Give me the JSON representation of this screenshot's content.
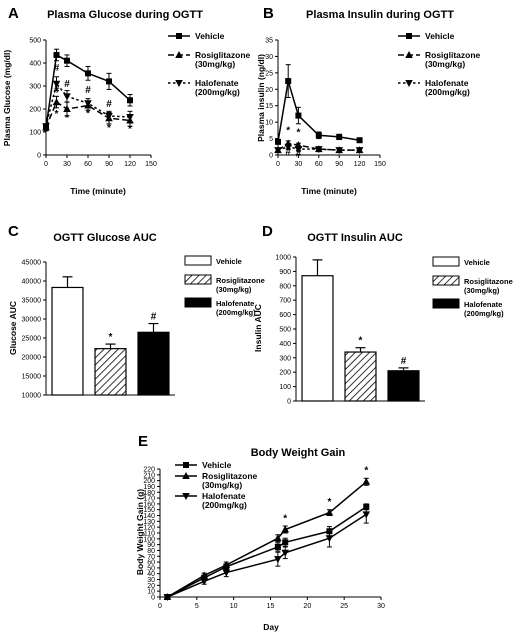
{
  "panels": [
    {
      "id": "A",
      "title": "Plasma Glucose during OGTT",
      "chart_data": {
        "type": "line",
        "title": "Plasma Glucose during OGTT",
        "xlabel": "Time (minute)",
        "ylabel": "Plasma Glucose (mg/dl)",
        "xlim": [
          0,
          150
        ],
        "ylim": [
          0,
          500
        ],
        "xticks": [
          0,
          30,
          60,
          90,
          120,
          150
        ],
        "yticks": [
          0,
          100,
          200,
          300,
          400,
          500
        ],
        "x": [
          0,
          15,
          30,
          60,
          90,
          120
        ],
        "series": [
          {
            "name": "Vehicle",
            "style": "solid",
            "marker": "square",
            "values": [
              120,
              435,
              410,
              355,
              320,
              238
            ],
            "errors": [
              15,
              25,
              25,
              30,
              35,
              25
            ]
          },
          {
            "name": "Rosiglitazone (30mg/kg)",
            "style": "dashed",
            "marker": "triangle",
            "values": [
              120,
              230,
              200,
              215,
              160,
              150
            ],
            "errors": [
              10,
              25,
              30,
              20,
              25,
              25
            ]
          },
          {
            "name": "Halofenate (200mg/kg)",
            "style": "dotted",
            "marker": "diamond",
            "values": [
              125,
              310,
              255,
              225,
              170,
              165
            ],
            "errors": [
              10,
              30,
              25,
              20,
              20,
              25
            ]
          }
        ],
        "annotations": [
          {
            "x": 15,
            "y": 365,
            "text": "#"
          },
          {
            "x": 15,
            "y": 270,
            "text": "#"
          },
          {
            "x": 15,
            "y": 165,
            "text": "*"
          },
          {
            "x": 30,
            "y": 295,
            "text": "#"
          },
          {
            "x": 30,
            "y": 148,
            "text": "*"
          },
          {
            "x": 60,
            "y": 270,
            "text": "#"
          },
          {
            "x": 60,
            "y": 168,
            "text": "*"
          },
          {
            "x": 90,
            "y": 208,
            "text": "#"
          },
          {
            "x": 90,
            "y": 105,
            "text": "*"
          },
          {
            "x": 120,
            "y": 100,
            "text": "*"
          }
        ]
      }
    },
    {
      "id": "B",
      "title": "Plasma Insulin during OGTT",
      "chart_data": {
        "type": "line",
        "title": "Plasma Insulin during OGTT",
        "xlabel": "Time (minute)",
        "ylabel": "Plasma insulin (ng/dl)",
        "xlim": [
          0,
          150
        ],
        "ylim": [
          0,
          35
        ],
        "xticks": [
          0,
          30,
          60,
          90,
          120,
          150
        ],
        "yticks": [
          0,
          5,
          10,
          15,
          20,
          25,
          30,
          35
        ],
        "x": [
          0,
          15,
          30,
          60,
          90,
          120
        ],
        "series": [
          {
            "name": "Vehicle",
            "style": "solid",
            "marker": "square",
            "values": [
              4,
              22.5,
              12,
              6,
              5.5,
              4.5
            ],
            "errors": [
              0.5,
              5,
              2.5,
              1,
              0.8,
              0.5
            ]
          },
          {
            "name": "Rosiglitazone (30mg/kg)",
            "style": "dashed",
            "marker": "triangle",
            "values": [
              1.5,
              3.5,
              3,
              1.8,
              1.5,
              1.5
            ],
            "errors": [
              0.3,
              0.8,
              0.6,
              0.3,
              0.3,
              0.3
            ]
          },
          {
            "name": "Halofenate (200mg/kg)",
            "style": "dotted",
            "marker": "diamond",
            "values": [
              1.5,
              2.5,
              1.8,
              1.8,
              1.5,
              1.5
            ],
            "errors": [
              0.3,
              0.6,
              0.4,
              0.3,
              0.3,
              0.3
            ]
          }
        ],
        "annotations": [
          {
            "x": 15,
            "y": 6.5,
            "text": "*"
          },
          {
            "x": 15,
            "y": 0.2,
            "text": "#"
          },
          {
            "x": 30,
            "y": 6.0,
            "text": "*"
          },
          {
            "x": 30,
            "y": -0.5,
            "text": "#"
          }
        ]
      }
    },
    {
      "id": "C",
      "title": "OGTT Glucose AUC",
      "chart_data": {
        "type": "bar",
        "title": "OGTT Glucose AUC",
        "ylabel": "Glucose AUC",
        "ylim": [
          10000,
          45000
        ],
        "yticks": [
          10000,
          15000,
          20000,
          25000,
          30000,
          35000,
          40000,
          45000
        ],
        "categories": [
          "Vehicle",
          "Rosiglitazone (30mg/kg)",
          "Halofenate (200mg/kg)"
        ],
        "values": [
          38300,
          22200,
          26500
        ],
        "errors": [
          2800,
          1200,
          2300
        ],
        "fills": [
          "white",
          "hatch",
          "black"
        ],
        "labels": [
          "",
          "*",
          "#"
        ]
      }
    },
    {
      "id": "D",
      "title": "OGTT Insulin AUC",
      "chart_data": {
        "type": "bar",
        "title": "OGTT Insulin AUC",
        "ylabel": "Insulin AUC",
        "ylim": [
          0,
          1000
        ],
        "yticks": [
          0,
          100,
          200,
          300,
          400,
          500,
          600,
          700,
          800,
          900,
          1000
        ],
        "categories": [
          "Vehicle",
          "Rosiglitazone (30mg/kg)",
          "Halofenate (200mg/kg)"
        ],
        "values": [
          870,
          340,
          210
        ],
        "errors": [
          110,
          30,
          20
        ],
        "fills": [
          "white",
          "hatch",
          "black"
        ],
        "labels": [
          "",
          "*",
          "#"
        ]
      }
    },
    {
      "id": "E",
      "title": "Body Weight Gain",
      "chart_data": {
        "type": "line",
        "title": "Body Weight Gain",
        "xlabel": "Day",
        "ylabel": "Body Weight Gain (g)",
        "xlim": [
          0,
          30
        ],
        "ylim": [
          0,
          220
        ],
        "xticks": [
          0,
          5,
          10,
          15,
          20,
          25,
          30
        ],
        "yticks": [
          0,
          10,
          20,
          30,
          40,
          50,
          60,
          70,
          80,
          90,
          100,
          110,
          120,
          130,
          140,
          150,
          160,
          170,
          180,
          190,
          200,
          210,
          220
        ],
        "x": [
          1,
          6,
          9,
          16,
          17,
          23,
          28
        ],
        "series": [
          {
            "name": "Vehicle",
            "style": "solid",
            "marker": "square",
            "values": [
              0,
              33,
              52,
              86,
              94,
              113,
              155
            ],
            "errors": [
              0,
              4,
              5,
              7,
              7,
              8,
              5
            ]
          },
          {
            "name": "Rosiglitazone (30mg/kg)",
            "style": "solid",
            "marker": "triangle",
            "values": [
              0,
              37,
              55,
              101,
              116,
              145,
              198
            ],
            "errors": [
              0,
              4,
              5,
              6,
              6,
              5,
              6
            ]
          },
          {
            "name": "Halofenate (200mg/kg)",
            "style": "solid",
            "marker": "diamond",
            "values": [
              0,
              27,
              42,
              65,
              76,
              101,
              142
            ],
            "errors": [
              0,
              5,
              7,
              12,
              10,
              15,
              15
            ]
          }
        ],
        "annotations": [
          {
            "x": 17,
            "y": 130,
            "text": "*"
          },
          {
            "x": 23,
            "y": 158,
            "text": "*"
          },
          {
            "x": 28,
            "y": 212,
            "text": "*"
          }
        ]
      }
    }
  ]
}
